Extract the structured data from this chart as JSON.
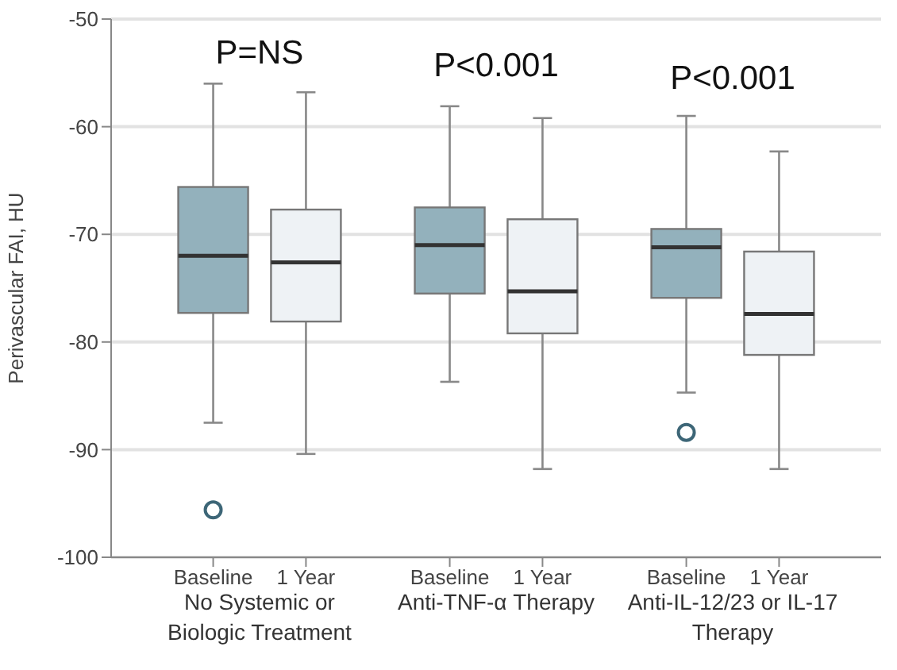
{
  "chart_data": {
    "type": "box",
    "ylabel": "Perivascular FAI, HU",
    "categories": [
      "Baseline",
      "1 Year",
      "Baseline",
      "1 Year",
      "Baseline",
      "1 Year"
    ],
    "boxes": [
      {
        "low": -87.5,
        "q1": -77.3,
        "median": -72.0,
        "q3": -65.6,
        "high": -56.0,
        "outliers": [
          -95.6
        ]
      },
      {
        "low": -90.4,
        "q1": -78.1,
        "median": -72.6,
        "q3": -67.7,
        "high": -56.8
      },
      {
        "low": -83.7,
        "q1": -75.5,
        "median": -71.0,
        "q3": -67.5,
        "high": -58.1
      },
      {
        "low": -91.8,
        "q1": -79.2,
        "median": -75.3,
        "q3": -68.6,
        "high": -59.2
      },
      {
        "low": -84.7,
        "q1": -75.9,
        "median": -71.2,
        "q3": -69.5,
        "high": -59.0,
        "outliers": [
          -88.4
        ]
      },
      {
        "low": -91.8,
        "q1": -81.2,
        "median": -77.4,
        "q3": -71.6,
        "high": -62.3
      }
    ],
    "colors": [
      "#93b1bc",
      "#eef2f5",
      "#93b1bc",
      "#eef2f5",
      "#93b1bc",
      "#eef2f5"
    ],
    "ylim": [
      -100,
      -50
    ],
    "yticks": [
      -100,
      -90,
      -80,
      -70,
      -60,
      -50
    ],
    "grid": "y",
    "annotations": [
      "P=NS",
      "P<0.001",
      "P<0.001",
      "No Systemic or Biologic Treatment",
      "Anti-TNF-α Therapy",
      "Anti-IL-12/23 or IL-17 Therapy"
    ]
  }
}
